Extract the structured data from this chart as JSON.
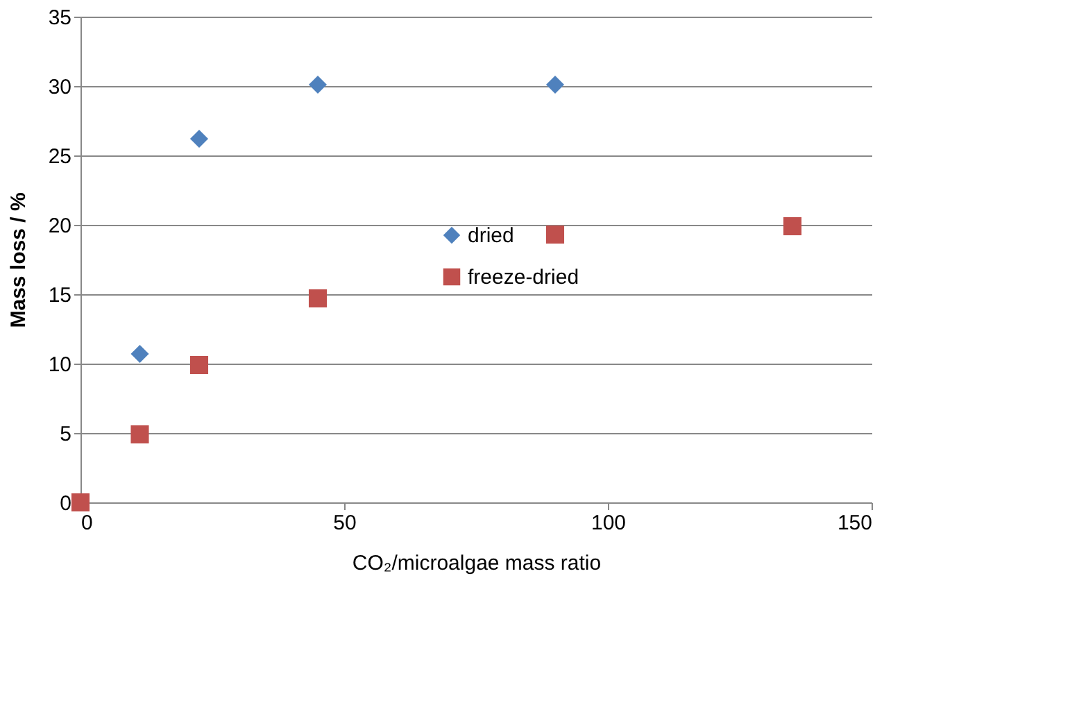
{
  "chart_data": {
    "type": "scatter",
    "xlabel": "CO₂/microalgae mass ratio",
    "ylabel": "Mass loss / %",
    "xlim": [
      0,
      150
    ],
    "xticks": [
      0,
      50,
      100,
      150
    ],
    "ylim": [
      0,
      35
    ],
    "yticks": [
      0,
      5,
      10,
      15,
      20,
      25,
      30,
      35
    ],
    "grid": "y",
    "legend": "center",
    "series": [
      {
        "name": "dried",
        "color": "#4f81bd",
        "marker": "diamond",
        "x": [
          11.25,
          22.5,
          45,
          90
        ],
        "values": [
          10.7,
          26.2,
          30.1,
          30.1
        ]
      },
      {
        "name": "freeze-dried",
        "color": "#c0504d",
        "marker": "square",
        "x": [
          0,
          11.25,
          22.5,
          45,
          90,
          135
        ],
        "values": [
          0,
          4.9,
          9.9,
          14.7,
          19.3,
          19.9
        ]
      }
    ]
  }
}
